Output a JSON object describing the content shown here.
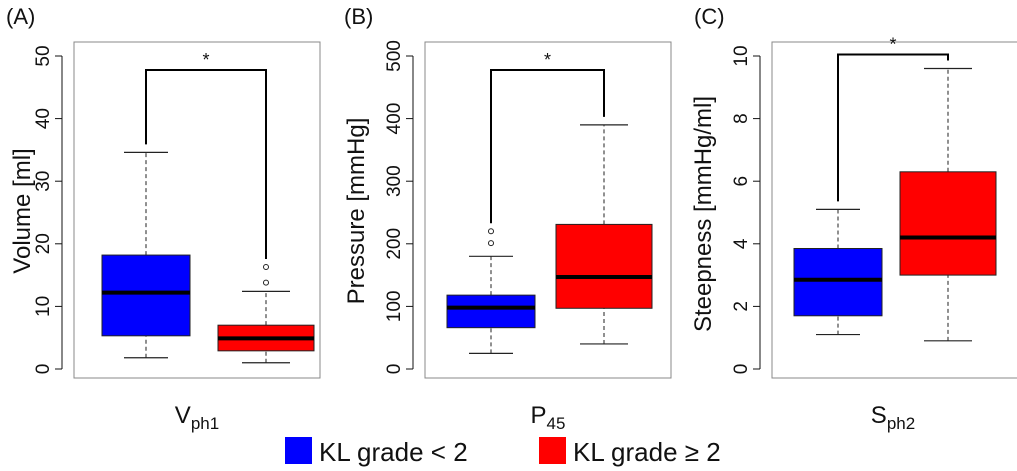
{
  "legend": {
    "items": [
      {
        "label": "KL grade < 2",
        "color": "#0000ff"
      },
      {
        "label": "KL grade ≥ 2",
        "color": "#ff0000"
      }
    ],
    "placement": "bottom-center"
  },
  "chart_data": [
    {
      "type": "boxplot",
      "panel_label": "(A)",
      "ylabel": "Volume [ml]",
      "xlabel": {
        "main": "V",
        "sub": "ph1"
      },
      "ylim": [
        0,
        50
      ],
      "yticks": [
        0,
        10,
        20,
        30,
        40,
        50
      ],
      "significance": "*",
      "series": [
        {
          "name": "KL grade < 2",
          "color": "#0000ff",
          "whisker_low": 1.8,
          "q1": 5.3,
          "median": 12.2,
          "q3": 18.2,
          "whisker_high": 34.6,
          "outliers": []
        },
        {
          "name": "KL grade ≥ 2",
          "color": "#ff0000",
          "whisker_low": 1.0,
          "q1": 2.9,
          "median": 4.9,
          "q3": 7.0,
          "whisker_high": 12.4,
          "outliers": [
            13.8,
            16.3
          ]
        }
      ]
    },
    {
      "type": "boxplot",
      "panel_label": "(B)",
      "ylabel": "Pressure [mmHg]",
      "xlabel": {
        "main": "P",
        "sub": "45"
      },
      "ylim": [
        0,
        500
      ],
      "yticks": [
        0,
        100,
        200,
        300,
        400,
        500
      ],
      "significance": "*",
      "series": [
        {
          "name": "KL grade < 2",
          "color": "#0000ff",
          "whisker_low": 25,
          "q1": 66,
          "median": 98,
          "q3": 118,
          "whisker_high": 180,
          "outliers": [
            201,
            220
          ]
        },
        {
          "name": "KL grade ≥ 2",
          "color": "#ff0000",
          "whisker_low": 40,
          "q1": 97,
          "median": 147,
          "q3": 231,
          "whisker_high": 390,
          "outliers": []
        }
      ]
    },
    {
      "type": "boxplot",
      "panel_label": "(C)",
      "ylabel": "Steepness [mmHg/ml]",
      "xlabel": {
        "main": "S",
        "sub": "ph2"
      },
      "ylim": [
        0,
        10
      ],
      "yticks": [
        0,
        2,
        4,
        6,
        8,
        10
      ],
      "significance": "*",
      "series": [
        {
          "name": "KL grade < 2",
          "color": "#0000ff",
          "whisker_low": 1.1,
          "q1": 1.7,
          "median": 2.85,
          "q3": 3.85,
          "whisker_high": 5.1,
          "outliers": []
        },
        {
          "name": "KL grade ≥ 2",
          "color": "#ff0000",
          "whisker_low": 0.9,
          "q1": 3.0,
          "median": 4.2,
          "q3": 6.3,
          "whisker_high": 9.6,
          "outliers": []
        }
      ]
    }
  ]
}
